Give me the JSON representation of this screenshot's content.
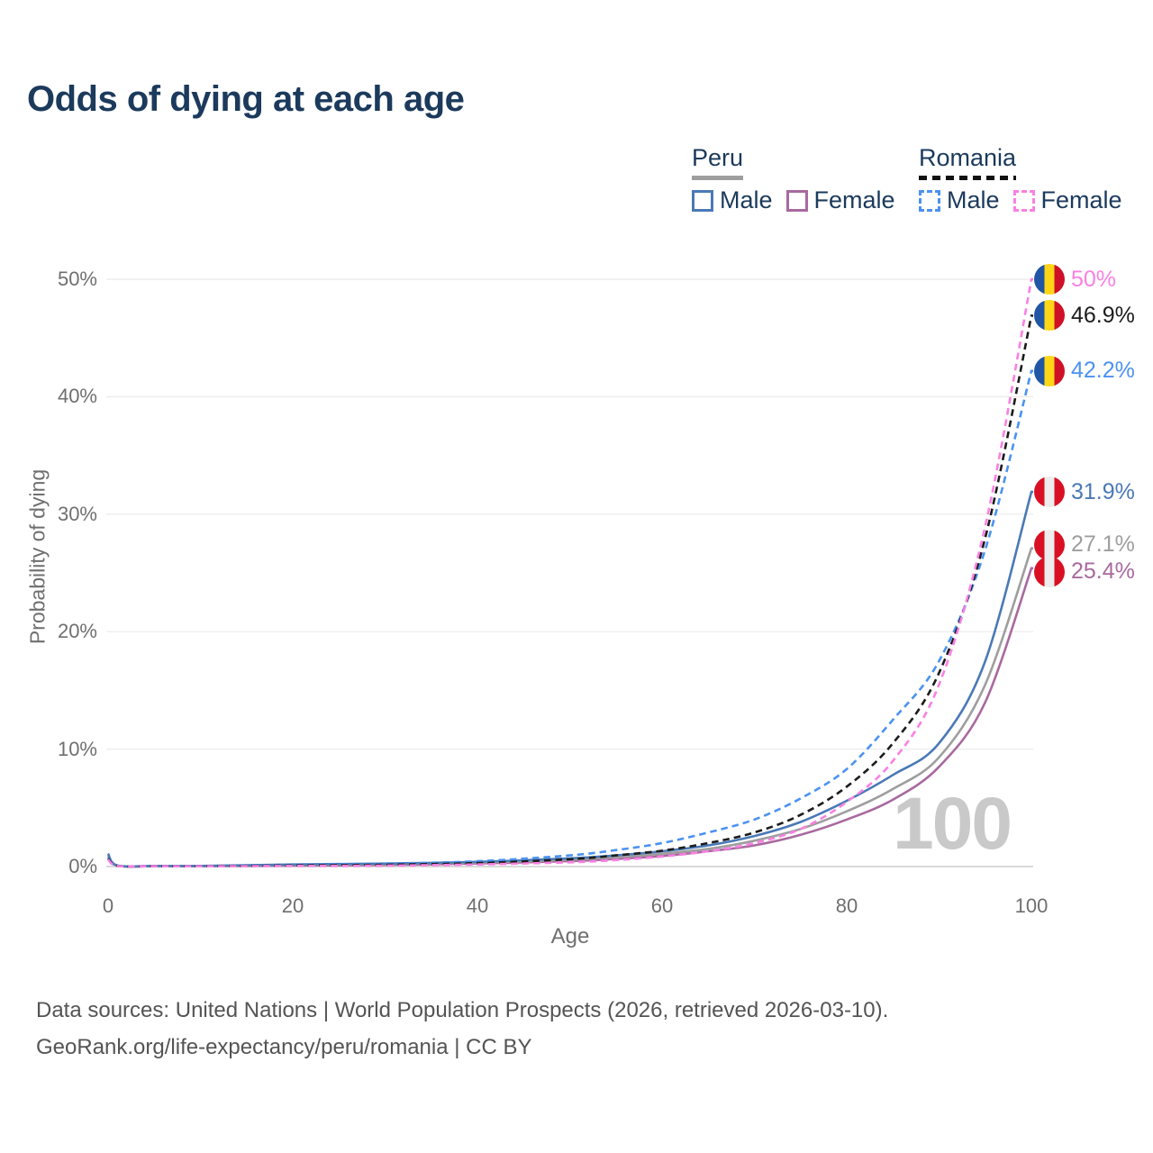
{
  "title": "Odds of dying at each age",
  "watermark": "100",
  "colors": {
    "title_text": "#1b3a5c",
    "axis_text": "#6f6f6f",
    "grid": "#ececec",
    "grid_zero": "#d9d9d9",
    "watermark": "#c9c9c9",
    "footer_text": "#545454",
    "peru_underline": "#9e9e9e",
    "romania_underline": "#111111"
  },
  "legend": {
    "groups": [
      {
        "country": "Peru",
        "line_style": "solid",
        "items": [
          {
            "label": "Male",
            "color": "#4a79b6"
          },
          {
            "label": "Female",
            "color": "#a8699f"
          }
        ]
      },
      {
        "country": "Romania",
        "line_style": "dashed",
        "items": [
          {
            "label": "Male",
            "color": "#4b92f2"
          },
          {
            "label": "Female",
            "color": "#fa80e2"
          }
        ]
      }
    ]
  },
  "footer": {
    "line1": "Data sources: United Nations | World Population Prospects (2026, retrieved 2026-03-10).",
    "line2": "GeoRank.org/life-expectancy/peru/romania | CC BY"
  },
  "chart_data": {
    "type": "line",
    "title": "Odds of dying at each age",
    "xlabel": "Age",
    "ylabel": "Probability of dying",
    "xlim": [
      0,
      100
    ],
    "ylim_percent": [
      0,
      52
    ],
    "grid": true,
    "legend_position": "top-right",
    "x_ticks": [
      0,
      20,
      40,
      60,
      80,
      100
    ],
    "y_tick_labels": [
      "0%",
      "10%",
      "20%",
      "30%",
      "40%",
      "50%"
    ],
    "ages": [
      0,
      1,
      5,
      10,
      20,
      30,
      40,
      50,
      55,
      60,
      65,
      70,
      75,
      80,
      85,
      90,
      95,
      100
    ],
    "series": [
      {
        "name": "Peru Female",
        "key": "peru-female",
        "country": "Peru",
        "gender": "Female",
        "style": "solid",
        "color": "#a8699f",
        "flag_name": "peru-flag-icon",
        "flag": [
          "#d91023",
          "#ededed",
          "#d91023"
        ],
        "end_label": "25.4%",
        "values": [
          0.9,
          0.07,
          0.04,
          0.03,
          0.08,
          0.14,
          0.26,
          0.46,
          0.65,
          0.9,
          1.3,
          1.8,
          2.7,
          4.0,
          5.7,
          8.5,
          14.0,
          25.4
        ]
      },
      {
        "name": "Peru Both sexes",
        "key": "peru-both",
        "country": "Peru",
        "gender": "Both",
        "style": "solid",
        "color": "#9e9e9e",
        "flag_name": "peru-flag-icon",
        "flag": [
          "#d91023",
          "#ededed",
          "#d91023"
        ],
        "end_label": "27.1%",
        "values": [
          1.0,
          0.08,
          0.04,
          0.04,
          0.13,
          0.2,
          0.33,
          0.58,
          0.8,
          1.1,
          1.5,
          2.2,
          3.2,
          4.7,
          6.6,
          9.3,
          15.5,
          27.1
        ]
      },
      {
        "name": "Peru Male",
        "key": "peru-male",
        "country": "Peru",
        "gender": "Male",
        "style": "solid",
        "color": "#4a79b6",
        "flag_name": "peru-flag-icon",
        "flag": [
          "#d91023",
          "#ededed",
          "#d91023"
        ],
        "end_label": "31.9%",
        "values": [
          1.1,
          0.09,
          0.05,
          0.05,
          0.18,
          0.25,
          0.4,
          0.7,
          0.95,
          1.3,
          1.8,
          2.6,
          3.8,
          5.6,
          7.8,
          10.5,
          17.5,
          31.9
        ]
      },
      {
        "name": "Romania Male",
        "key": "romania-male",
        "country": "Romania",
        "gender": "Male",
        "style": "dashed",
        "color": "#4b92f2",
        "flag_name": "romania-flag-icon",
        "flag": [
          "#2056a4",
          "#ffd617",
          "#ce1126"
        ],
        "end_label": "42.2%",
        "values": [
          0.75,
          0.07,
          0.04,
          0.04,
          0.15,
          0.25,
          0.45,
          0.95,
          1.4,
          2.0,
          2.9,
          4.0,
          5.8,
          8.3,
          12.5,
          17.5,
          27.0,
          42.2
        ]
      },
      {
        "name": "Romania Both sexes",
        "key": "romania-both",
        "country": "Romania",
        "gender": "Both",
        "style": "dashed",
        "color": "#1c1c1c",
        "flag_name": "romania-flag-icon",
        "flag": [
          "#2056a4",
          "#ffd617",
          "#ce1126"
        ],
        "end_label": "46.9%",
        "values": [
          0.68,
          0.06,
          0.03,
          0.03,
          0.1,
          0.16,
          0.3,
          0.62,
          0.95,
          1.35,
          2.0,
          2.9,
          4.4,
          6.8,
          10.5,
          16.5,
          28.0,
          46.9
        ]
      },
      {
        "name": "Romania Female",
        "key": "romania-female",
        "country": "Romania",
        "gender": "Female",
        "style": "dashed",
        "color": "#fa80e2",
        "flag_name": "romania-flag-icon",
        "flag": [
          "#2056a4",
          "#ffd617",
          "#ce1126"
        ],
        "end_label": "50%",
        "values": [
          0.6,
          0.05,
          0.03,
          0.02,
          0.05,
          0.08,
          0.18,
          0.36,
          0.55,
          0.85,
          1.3,
          2.0,
          3.2,
          5.5,
          9.0,
          15.5,
          29.0,
          50.0
        ]
      }
    ]
  }
}
